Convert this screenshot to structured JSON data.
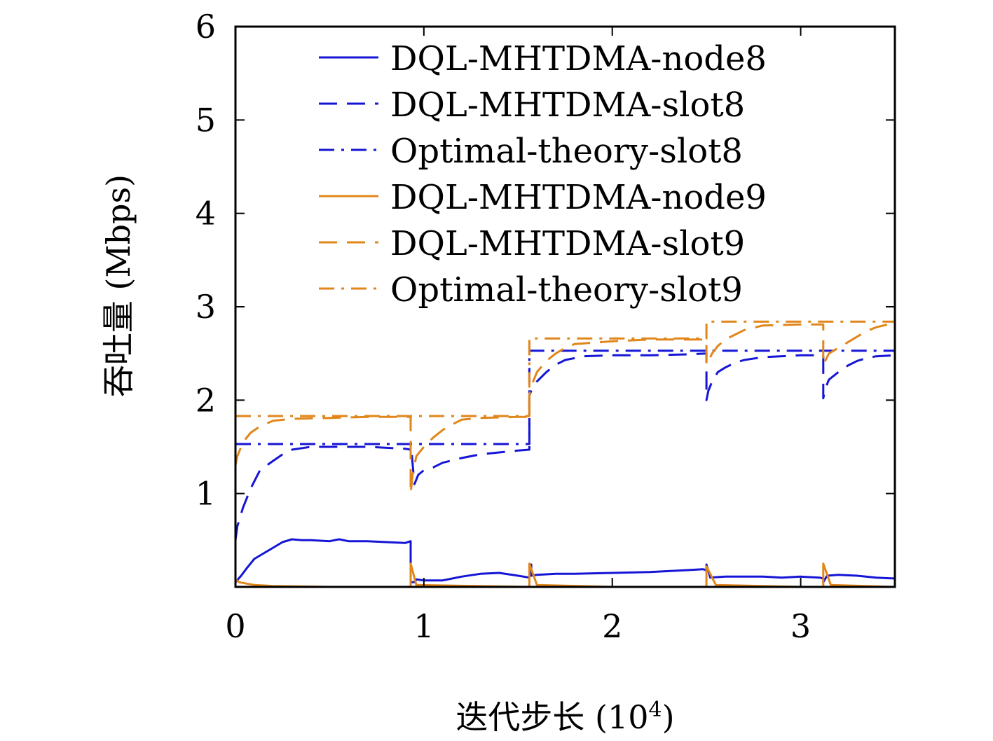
{
  "chart_data": {
    "type": "line",
    "xlabel": "迭代步长 (10",
    "xlabel_exp": "4",
    "xlabel_close": ")",
    "ylabel": "吞吐量 (Mbps)",
    "xlim": [
      0,
      3.5
    ],
    "ylim": [
      0,
      6
    ],
    "xticks": [
      0,
      1,
      2,
      3
    ],
    "xtick_labels": [
      "0",
      "1",
      "2",
      "3"
    ],
    "yticks": [
      1,
      2,
      3,
      4,
      5,
      6
    ],
    "ytick_labels": [
      "1",
      "2",
      "3",
      "4",
      "5",
      "6"
    ],
    "grid": false,
    "legend_position": "top-right",
    "series": [
      {
        "name": "DQL-MHTDMA-node8",
        "color": "#1515d6",
        "dash": "solid",
        "x": [
          0,
          0.03,
          0.06,
          0.1,
          0.15,
          0.2,
          0.25,
          0.3,
          0.35,
          0.4,
          0.5,
          0.55,
          0.6,
          0.7,
          0.8,
          0.9,
          0.93,
          0.93,
          0.95,
          0.96,
          1.0,
          1.1,
          1.2,
          1.3,
          1.4,
          1.5,
          1.56,
          1.57,
          1.57,
          1.6,
          1.7,
          1.8,
          2.0,
          2.2,
          2.4,
          2.48,
          2.5,
          2.5,
          2.52,
          2.6,
          2.8,
          2.9,
          3.0,
          3.1,
          3.12,
          3.12,
          3.14,
          3.2,
          3.3,
          3.4,
          3.5
        ],
        "y": [
          0.05,
          0.12,
          0.2,
          0.3,
          0.36,
          0.42,
          0.48,
          0.51,
          0.5,
          0.5,
          0.49,
          0.51,
          0.49,
          0.49,
          0.48,
          0.47,
          0.49,
          0.05,
          0.05,
          0.08,
          0.07,
          0.07,
          0.11,
          0.14,
          0.15,
          0.12,
          0.1,
          0.24,
          0.12,
          0.13,
          0.14,
          0.14,
          0.15,
          0.16,
          0.18,
          0.19,
          0.18,
          0.24,
          0.1,
          0.11,
          0.11,
          0.1,
          0.11,
          0.1,
          0.09,
          0.05,
          0.12,
          0.13,
          0.12,
          0.1,
          0.09
        ]
      },
      {
        "name": "DQL-MHTDMA-slot8",
        "color": "#1515d6",
        "dash": "long-dash",
        "x": [
          0,
          0.01,
          0.04,
          0.08,
          0.13,
          0.2,
          0.25,
          0.3,
          0.4,
          0.5,
          0.7,
          0.9,
          0.93,
          0.93,
          0.95,
          0.97,
          1.0,
          1.05,
          1.1,
          1.2,
          1.3,
          1.5,
          1.56,
          1.56,
          1.57,
          1.6,
          1.65,
          1.7,
          1.75,
          1.85,
          2.0,
          2.2,
          2.4,
          2.5,
          2.5,
          2.51,
          2.53,
          2.56,
          2.6,
          2.65,
          2.7,
          2.8,
          3.0,
          3.12,
          3.12,
          3.13,
          3.15,
          3.2,
          3.25,
          3.3,
          3.35,
          3.4,
          3.5
        ],
        "y": [
          0.5,
          0.65,
          0.85,
          1.05,
          1.25,
          1.35,
          1.42,
          1.47,
          1.5,
          1.5,
          1.5,
          1.48,
          1.47,
          1.55,
          1.1,
          1.2,
          1.25,
          1.28,
          1.33,
          1.38,
          1.42,
          1.46,
          1.47,
          2.05,
          2.1,
          2.2,
          2.3,
          2.38,
          2.43,
          2.47,
          2.48,
          2.48,
          2.49,
          2.5,
          2.0,
          2.1,
          2.2,
          2.3,
          2.35,
          2.4,
          2.43,
          2.46,
          2.48,
          2.48,
          2.02,
          2.12,
          2.22,
          2.3,
          2.37,
          2.42,
          2.45,
          2.47,
          2.48
        ]
      },
      {
        "name": "Optimal-theory-slot8",
        "color": "#1515d6",
        "dash": "dash-dot",
        "x": [
          0,
          0.93,
          0.93,
          1.56,
          1.56,
          3.5
        ],
        "y": [
          1.53,
          1.53,
          1.53,
          1.53,
          2.53,
          2.53
        ]
      },
      {
        "name": "DQL-MHTDMA-node9",
        "color": "#e0861a",
        "dash": "solid",
        "x": [
          0,
          0.02,
          0.1,
          0.2,
          0.5,
          0.93,
          0.93,
          0.96,
          1.56,
          1.56,
          1.6,
          2.0,
          2.5,
          2.5,
          2.55,
          3.0,
          3.12,
          3.12,
          3.16,
          3.5
        ],
        "y": [
          0.08,
          0.05,
          0.02,
          0.01,
          0.0,
          0.0,
          0.25,
          0.02,
          0.0,
          0.25,
          0.02,
          0.0,
          0.0,
          0.22,
          0.02,
          0.0,
          0.0,
          0.25,
          0.02,
          0.0
        ]
      },
      {
        "name": "DQL-MHTDMA-slot9",
        "color": "#e0861a",
        "dash": "long-dash",
        "x": [
          0,
          0.01,
          0.04,
          0.08,
          0.13,
          0.2,
          0.3,
          0.5,
          0.7,
          0.9,
          0.93,
          0.93,
          0.94,
          0.96,
          1.0,
          1.05,
          1.1,
          1.15,
          1.2,
          1.3,
          1.5,
          1.56,
          1.56,
          1.57,
          1.6,
          1.65,
          1.7,
          1.75,
          1.8,
          2.0,
          2.2,
          2.4,
          2.5,
          2.5,
          2.51,
          2.53,
          2.56,
          2.6,
          2.65,
          2.7,
          2.8,
          3.0,
          3.12,
          3.12,
          3.13,
          3.15,
          3.2,
          3.25,
          3.3,
          3.35,
          3.4,
          3.5
        ],
        "y": [
          1.3,
          1.4,
          1.55,
          1.65,
          1.72,
          1.78,
          1.8,
          1.81,
          1.82,
          1.82,
          1.82,
          1.0,
          1.2,
          1.4,
          1.5,
          1.6,
          1.68,
          1.74,
          1.79,
          1.81,
          1.82,
          1.82,
          2.05,
          2.15,
          2.3,
          2.42,
          2.5,
          2.56,
          2.6,
          2.63,
          2.65,
          2.65,
          2.65,
          2.38,
          2.42,
          2.5,
          2.58,
          2.65,
          2.7,
          2.75,
          2.8,
          2.81,
          2.81,
          2.38,
          2.42,
          2.5,
          2.56,
          2.62,
          2.68,
          2.74,
          2.78,
          2.83
        ]
      },
      {
        "name": "Optimal-theory-slot9",
        "color": "#e0861a",
        "dash": "dash-dot",
        "x": [
          0,
          1.56,
          1.56,
          2.5,
          2.5,
          3.5
        ],
        "y": [
          1.83,
          1.83,
          2.66,
          2.66,
          2.84,
          2.84
        ]
      }
    ]
  }
}
